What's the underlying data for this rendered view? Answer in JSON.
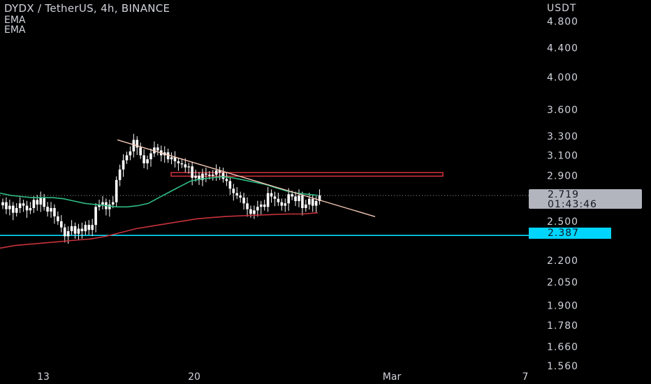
{
  "header": {
    "title": "DYDX / TetherUS, 4h, BINANCE",
    "indicators": [
      "EMA",
      "EMA"
    ]
  },
  "axis": {
    "unit": "USDT",
    "y_ticks": [
      "4.800",
      "4.400",
      "4.000",
      "3.600",
      "3.300",
      "3.100",
      "2.900",
      "2.500",
      "2.200",
      "2.050",
      "1.900",
      "1.780",
      "1.660",
      "1.560"
    ],
    "x_ticks": [
      "13",
      "20",
      "Mar",
      "7"
    ]
  },
  "price_tag": {
    "price": "2.719",
    "countdown": "01:43:46"
  },
  "level_tag": {
    "price": "2.387"
  },
  "colors": {
    "background": "#000000",
    "candle": "#ffffff",
    "ema_fast": "#2ebd85",
    "ema_slow": "#c8323c",
    "support_line": "#00e0ff",
    "trendline": "#f2c6b4",
    "zone_border": "#d1323c",
    "price_tag_bg": "#b2b5be",
    "level_tag_bg": "#00d5ff"
  },
  "chart_data": {
    "type": "line",
    "title": "DYDX / TetherUS, 4h, BINANCE",
    "scale": "log",
    "ylim": [
      1.5,
      5.2
    ],
    "x_start_date": "2023-02-10",
    "x_end_date": "2023-03-07",
    "candles_close": [
      2.66,
      2.6,
      2.63,
      2.57,
      2.61,
      2.65,
      2.63,
      2.59,
      2.61,
      2.68,
      2.64,
      2.7,
      2.62,
      2.58,
      2.61,
      2.54,
      2.5,
      2.45,
      2.38,
      2.42,
      2.46,
      2.4,
      2.44,
      2.42,
      2.47,
      2.43,
      2.47,
      2.62,
      2.64,
      2.66,
      2.6,
      2.64,
      2.66,
      2.86,
      2.96,
      3.05,
      3.1,
      3.14,
      3.26,
      3.18,
      3.1,
      3.02,
      3.06,
      3.12,
      3.18,
      3.15,
      3.1,
      3.13,
      3.06,
      3.08,
      3.04,
      3.02,
      3.01,
      2.98,
      2.99,
      2.88,
      2.9,
      2.86,
      2.92,
      2.91,
      2.9,
      2.91,
      2.95,
      2.93,
      2.87,
      2.85,
      2.78,
      2.74,
      2.72,
      2.7,
      2.65,
      2.6,
      2.56,
      2.59,
      2.62,
      2.64,
      2.62,
      2.74,
      2.71,
      2.69,
      2.66,
      2.63,
      2.65,
      2.73,
      2.71,
      2.67,
      2.72,
      2.61,
      2.64,
      2.69,
      2.63,
      2.67,
      2.72
    ],
    "series": [
      {
        "values": [
          2.74,
          2.72,
          2.71,
          2.7,
          2.7,
          2.7,
          2.69,
          2.67,
          2.65,
          2.64,
          2.63,
          2.62,
          2.62,
          2.63,
          2.65,
          2.7,
          2.75,
          2.8,
          2.85,
          2.87,
          2.88,
          2.89,
          2.88,
          2.86,
          2.84,
          2.82,
          2.79,
          2.76,
          2.74,
          2.73,
          2.72
        ]
      },
      {
        "values": [
          2.29,
          2.31,
          2.32,
          2.33,
          2.34,
          2.35,
          2.36,
          2.38,
          2.41,
          2.44,
          2.46,
          2.48,
          2.5,
          2.52,
          2.53,
          2.54,
          2.545,
          2.55,
          2.555,
          2.56,
          2.56,
          2.57
        ]
      }
    ],
    "support_level": 2.387,
    "trendline": {
      "from": 3.26,
      "to": 2.62
    },
    "resistance_zone": [
      2.896,
      2.93
    ]
  }
}
